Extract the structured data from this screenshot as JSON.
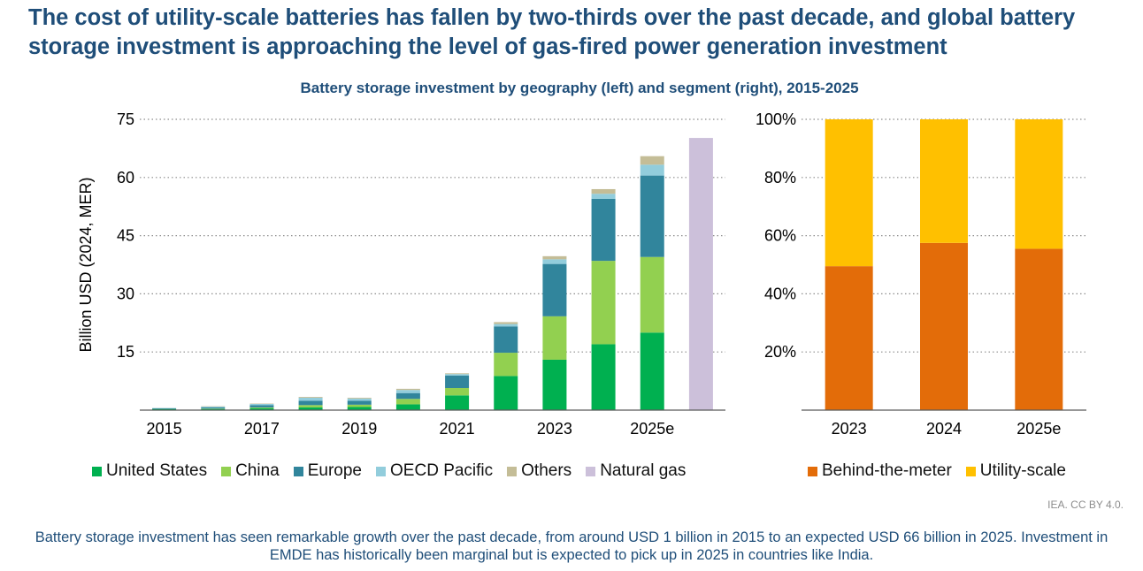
{
  "headline": "The cost of utility-scale batteries has fallen by two-thirds over the past decade, and global battery storage investment is approaching the level of gas-fired power generation investment",
  "subtitle": "Battery storage investment by geography (left) and segment (right), 2015-2025",
  "chart_data": [
    {
      "type": "bar",
      "stacked": true,
      "ylabel": "Billion USD (2024, MER)",
      "ylim": [
        0,
        75
      ],
      "yticks": [
        "15",
        "30",
        "45",
        "60",
        "75"
      ],
      "grid": true,
      "categories": [
        "2015",
        "2016",
        "2017",
        "2018",
        "2019",
        "2020",
        "2021",
        "2022",
        "2023",
        "2024",
        "2025e",
        "2025e Natural gas"
      ],
      "xtick_labels": [
        "2015",
        "2017",
        "2019",
        "2021",
        "2023",
        "2025e"
      ],
      "legend_position": "bottom",
      "series": [
        {
          "name": "United States",
          "color": "#00b050",
          "values": [
            0.3,
            0.3,
            0.5,
            0.7,
            0.8,
            1.5,
            3.8,
            8.8,
            13.0,
            17.0,
            20.0,
            0
          ]
        },
        {
          "name": "China",
          "color": "#92d050",
          "values": [
            0.0,
            0.1,
            0.2,
            0.6,
            0.6,
            1.4,
            1.9,
            6.0,
            11.2,
            21.5,
            19.5,
            0
          ]
        },
        {
          "name": "Europe",
          "color": "#31859c",
          "values": [
            0.2,
            0.3,
            0.6,
            1.1,
            1.0,
            1.5,
            3.2,
            6.8,
            13.5,
            16.0,
            21.0,
            0
          ]
        },
        {
          "name": "OECD Pacific",
          "color": "#92cddc",
          "values": [
            0.0,
            0.2,
            0.3,
            0.8,
            0.6,
            0.8,
            0.4,
            0.6,
            1.2,
            1.3,
            2.8,
            0
          ]
        },
        {
          "name": "Others",
          "color": "#c4bd97",
          "values": [
            0.0,
            0.1,
            0.1,
            0.2,
            0.2,
            0.3,
            0.2,
            0.5,
            0.8,
            1.2,
            2.2,
            0
          ]
        },
        {
          "name": "Natural gas",
          "color": "#ccc0da",
          "values": [
            0,
            0,
            0,
            0,
            0,
            0,
            0,
            0,
            0,
            0,
            0,
            70.2
          ]
        }
      ]
    },
    {
      "type": "bar",
      "stacked": true,
      "percent": true,
      "ylim": [
        0,
        100
      ],
      "yticks": [
        "20%",
        "40%",
        "60%",
        "80%",
        "100%"
      ],
      "grid": true,
      "categories": [
        "2023",
        "2024",
        "2025e"
      ],
      "legend_position": "bottom",
      "series": [
        {
          "name": "Behind-the-meter",
          "color": "#e36c09",
          "values": [
            49.5,
            57.5,
            55.5
          ]
        },
        {
          "name": "Utility-scale",
          "color": "#ffc000",
          "values": [
            50.5,
            42.5,
            44.5
          ]
        }
      ]
    }
  ],
  "credit": "IEA. CC BY 4.0.",
  "caption": "Battery storage investment has seen remarkable growth over the past decade, from around USD 1 billion in 2015 to an expected USD 66 billion in 2025. Investment in EMDE has historically been marginal but is expected to pick up in 2025 in countries like India."
}
